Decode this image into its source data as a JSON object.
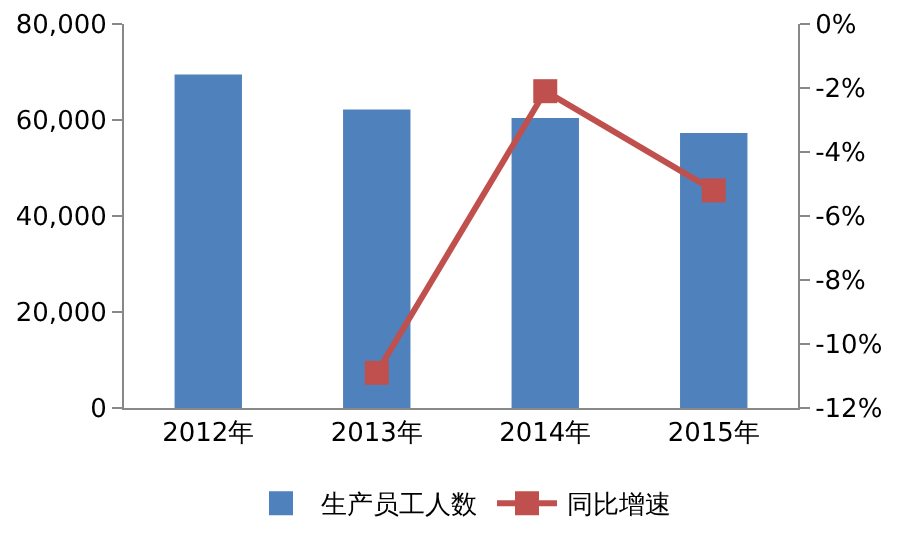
{
  "chart_data": {
    "type": "bar",
    "categories": [
      "2012年",
      "2013年",
      "2014年",
      "2015年"
    ],
    "series": [
      {
        "name": "生产员工人数",
        "color": "#4f81bd",
        "values": [
          69500,
          62200,
          60400,
          57300
        ]
      },
      {
        "name": "同比增速",
        "type": "line",
        "axis": "y2",
        "color": "#c0504d",
        "values": [
          null,
          -10.9,
          -2.1,
          -5.2
        ],
        "marker": "square"
      }
    ],
    "ylim": [
      0,
      80000
    ],
    "yticks": [
      {
        "value": 0,
        "label": "0"
      },
      {
        "value": 20000,
        "label": "20,000"
      },
      {
        "value": 40000,
        "label": "40,000"
      },
      {
        "value": 60000,
        "label": "60,000"
      },
      {
        "value": 80000,
        "label": "80,000"
      }
    ],
    "y2lim": [
      -12,
      0
    ],
    "y2ticks": [
      {
        "value": -12,
        "label": "-12%"
      },
      {
        "value": -10,
        "label": "-10%"
      },
      {
        "value": -8,
        "label": "-8%"
      },
      {
        "value": -6,
        "label": "-6%"
      },
      {
        "value": -4,
        "label": "-4%"
      },
      {
        "value": -2,
        "label": "-2%"
      },
      {
        "value": 0,
        "label": "0%"
      }
    ],
    "legend": "bottom"
  }
}
